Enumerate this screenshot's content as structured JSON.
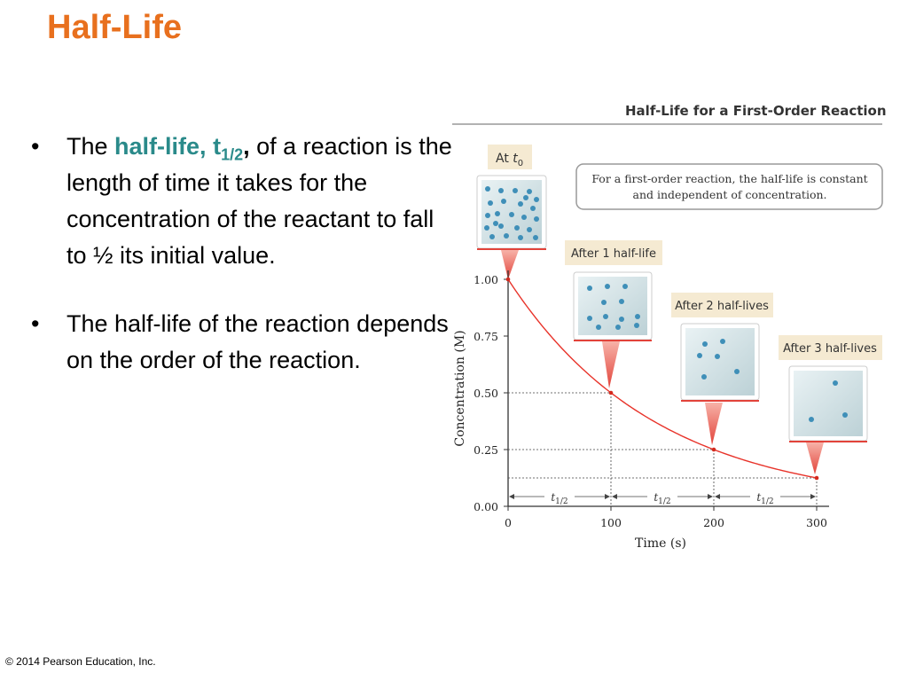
{
  "slide": {
    "title": "Half-Life",
    "footer": "© 2014 Pearson Education, Inc."
  },
  "bullets": {
    "b1_the": "The ",
    "b1_keyword": "half-life",
    "b1_comma": ", ",
    "b1_t": "t",
    "b1_sub": "1/2",
    "b1_comma2": ",",
    "b1_rest": "  of a reaction is the length of time it takes for the concentration of the reactant to fall to ½ its initial value.",
    "b2": "The half-life of the reaction depends on the order of the reaction."
  },
  "figure": {
    "title": "Half-Life for a First-Order Reaction",
    "callout_line1": "For a first-order reaction, the half-life is constant",
    "callout_line2": "and independent of concentration.",
    "label_t0_prefix": "At ",
    "label_t0_var": "t",
    "label_t0_sub": "0",
    "label_1": "After 1 half-life",
    "label_2": "After 2 half-lives",
    "label_3": "After 3 half-lives",
    "interval_var": "t",
    "interval_sub": "1/2"
  },
  "chart_data": {
    "type": "line",
    "title": "Half-Life for a First-Order Reaction",
    "xlabel": "Time (s)",
    "ylabel": "Concentration (M)",
    "xlim": [
      0,
      300
    ],
    "ylim": [
      0,
      1.0
    ],
    "x_ticks": [
      "0",
      "100",
      "200",
      "300"
    ],
    "y_ticks": [
      "0.00",
      "0.25",
      "0.50",
      "0.75",
      "1.00"
    ],
    "series": [
      {
        "x": [
          0,
          100,
          200,
          300
        ],
        "values": [
          1.0,
          0.5,
          0.25,
          0.125
        ]
      }
    ],
    "half_life_s": 100,
    "grid": false,
    "colors": {
      "curve": "#e8332a",
      "point": "#d42a1e",
      "title_rule": "#888888"
    }
  }
}
